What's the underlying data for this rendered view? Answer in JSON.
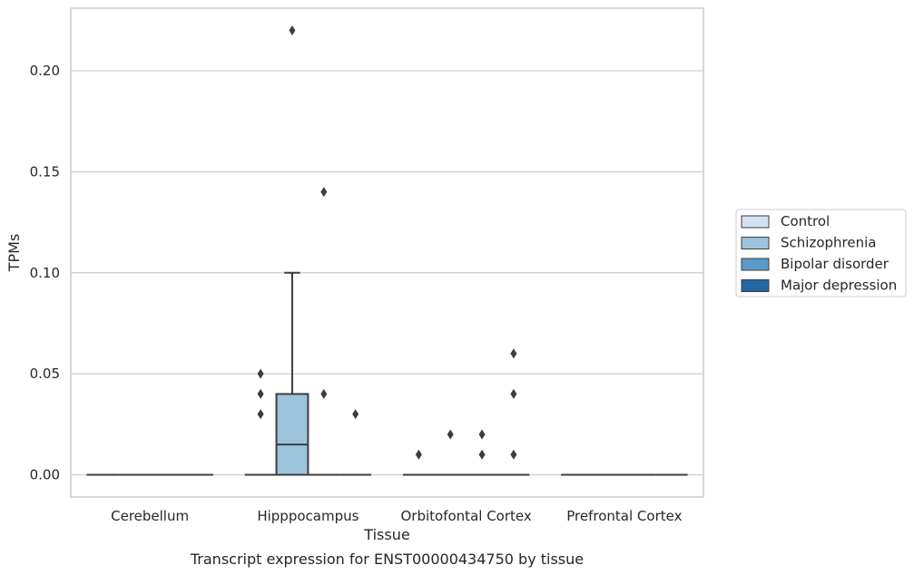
{
  "chart_data": {
    "type": "box",
    "title": "Transcript expression for ENST00000434750 by tissue",
    "xlabel": "Tissue",
    "ylabel": "TPMs",
    "ylim": [
      -0.011,
      0.231
    ],
    "yticks": [
      "0.00",
      "0.05",
      "0.10",
      "0.15",
      "0.20"
    ],
    "ytick_values": [
      0.0,
      0.05,
      0.1,
      0.15,
      0.2
    ],
    "grid": "horizontal",
    "legend_position": "right",
    "categories": [
      "Cerebellum",
      "Hipppocampus",
      "Orbitofontal Cortex",
      "Prefrontal Cortex"
    ],
    "series": [
      {
        "name": "Control",
        "color": "#d2e1ef",
        "boxes": [
          {
            "category": "Cerebellum",
            "q1": 0,
            "median": 0,
            "q3": 0,
            "whisker_low": 0,
            "whisker_high": 0,
            "outliers": []
          },
          {
            "category": "Hipppocampus",
            "q1": 0,
            "median": 0,
            "q3": 0,
            "whisker_low": 0,
            "whisker_high": 0,
            "outliers": [
              0.03,
              0.04,
              0.05
            ]
          },
          {
            "category": "Orbitofontal Cortex",
            "q1": 0,
            "median": 0,
            "q3": 0,
            "whisker_low": 0,
            "whisker_high": 0,
            "outliers": [
              0.01
            ]
          },
          {
            "category": "Prefrontal Cortex",
            "q1": 0,
            "median": 0,
            "q3": 0,
            "whisker_low": 0,
            "whisker_high": 0,
            "outliers": []
          }
        ]
      },
      {
        "name": "Schizophrenia",
        "color": "#9dc4dd",
        "boxes": [
          {
            "category": "Cerebellum",
            "q1": 0,
            "median": 0,
            "q3": 0,
            "whisker_low": 0,
            "whisker_high": 0,
            "outliers": []
          },
          {
            "category": "Hipppocampus",
            "q1": 0,
            "median": 0.015,
            "q3": 0.04,
            "whisker_low": 0,
            "whisker_high": 0.1,
            "outliers": [
              0.22
            ]
          },
          {
            "category": "Orbitofontal Cortex",
            "q1": 0,
            "median": 0,
            "q3": 0,
            "whisker_low": 0,
            "whisker_high": 0,
            "outliers": [
              0.02
            ]
          },
          {
            "category": "Prefrontal Cortex",
            "q1": 0,
            "median": 0,
            "q3": 0,
            "whisker_low": 0,
            "whisker_high": 0,
            "outliers": []
          }
        ]
      },
      {
        "name": "Bipolar disorder",
        "color": "#5a9bc9",
        "boxes": [
          {
            "category": "Cerebellum",
            "q1": 0,
            "median": 0,
            "q3": 0,
            "whisker_low": 0,
            "whisker_high": 0,
            "outliers": []
          },
          {
            "category": "Hipppocampus",
            "q1": 0,
            "median": 0,
            "q3": 0,
            "whisker_low": 0,
            "whisker_high": 0,
            "outliers": [
              0.14,
              0.04
            ]
          },
          {
            "category": "Orbitofontal Cortex",
            "q1": 0,
            "median": 0,
            "q3": 0,
            "whisker_low": 0,
            "whisker_high": 0,
            "outliers": [
              0.02,
              0.01
            ]
          },
          {
            "category": "Prefrontal Cortex",
            "q1": 0,
            "median": 0,
            "q3": 0,
            "whisker_low": 0,
            "whisker_high": 0,
            "outliers": []
          }
        ]
      },
      {
        "name": "Major depression",
        "color": "#2466a5",
        "boxes": [
          {
            "category": "Cerebellum",
            "q1": 0,
            "median": 0,
            "q3": 0,
            "whisker_low": 0,
            "whisker_high": 0,
            "outliers": []
          },
          {
            "category": "Hipppocampus",
            "q1": 0,
            "median": 0,
            "q3": 0,
            "whisker_low": 0,
            "whisker_high": 0,
            "outliers": [
              0.03
            ]
          },
          {
            "category": "Orbitofontal Cortex",
            "q1": 0,
            "median": 0,
            "q3": 0,
            "whisker_low": 0,
            "whisker_high": 0,
            "outliers": [
              0.06,
              0.04,
              0.01
            ]
          },
          {
            "category": "Prefrontal Cortex",
            "q1": 0,
            "median": 0,
            "q3": 0,
            "whisker_low": 0,
            "whisker_high": 0,
            "outliers": []
          }
        ]
      }
    ]
  }
}
